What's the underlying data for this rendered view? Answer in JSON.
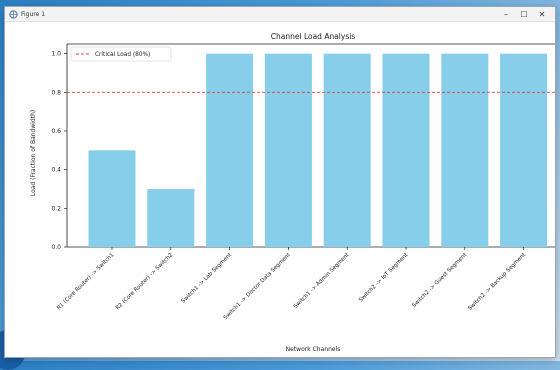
{
  "window": {
    "title": "Figure 1",
    "controls": [
      "–",
      "☐",
      "✕"
    ]
  },
  "chart_data": {
    "type": "bar",
    "title": "Channel Load Analysis",
    "xlabel": "Network Channels",
    "ylabel": "Load (Fraction of Bandwidth)",
    "categories": [
      "R1 (Core Router) -> Switch1",
      "R2 (Core Router) -> Switch2",
      "Switch1 -> Lab Segment",
      "Switch1 -> Doctor Data Segment",
      "Switch1 -> Admin Segment",
      "Switch2 -> IoT Segment",
      "Switch2 -> Guest Segment",
      "Switch2 -> Backup Segment"
    ],
    "values": [
      0.5,
      0.3,
      1.0,
      1.0,
      1.0,
      1.0,
      1.0,
      1.0
    ],
    "ylim": [
      0,
      1.05
    ],
    "yticks": [
      "0.0",
      "0.2",
      "0.4",
      "0.6",
      "0.8",
      "1.0"
    ],
    "bar_color": "#87ceeb",
    "threshold": {
      "value": 0.8,
      "label": "Critical Load (80%)",
      "color": "#e0443a"
    },
    "legend_position": "top-left",
    "grid": false
  }
}
